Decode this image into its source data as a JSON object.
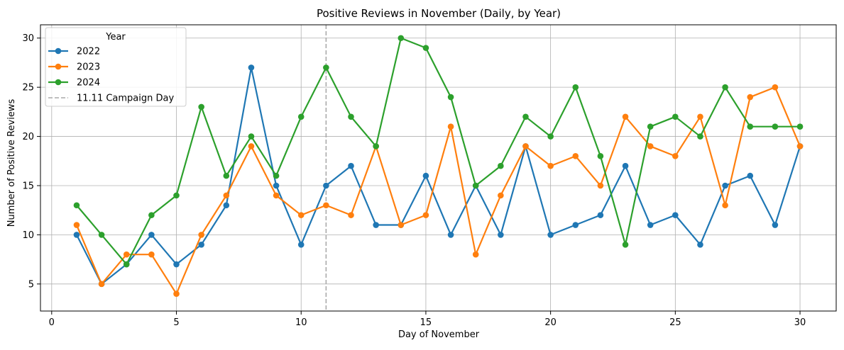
{
  "chart_data": {
    "type": "line",
    "title": "Positive Reviews in November (Daily, by Year)",
    "xlabel": "Day of November",
    "ylabel": "Number of Positive Reviews",
    "xlim": [
      -0.45,
      31.45
    ],
    "ylim": [
      2.25,
      31.35
    ],
    "x_ticks": [
      0,
      5,
      10,
      15,
      20,
      25,
      30
    ],
    "y_ticks": [
      5,
      10,
      15,
      20,
      25,
      30
    ],
    "grid": true,
    "legend": {
      "title": "Year",
      "placement": "upper-left"
    },
    "x": [
      1,
      2,
      3,
      4,
      5,
      6,
      7,
      8,
      9,
      10,
      11,
      12,
      13,
      14,
      15,
      16,
      17,
      18,
      19,
      20,
      21,
      22,
      23,
      24,
      25,
      26,
      27,
      28,
      29,
      30
    ],
    "series": [
      {
        "name": "2022",
        "color": "#1f77b4",
        "values": [
          10,
          5,
          7,
          10,
          7,
          9,
          13,
          27,
          15,
          9,
          15,
          17,
          11,
          11,
          16,
          10,
          15,
          10,
          19,
          10,
          11,
          12,
          17,
          11,
          12,
          9,
          15,
          16,
          11,
          19
        ]
      },
      {
        "name": "2023",
        "color": "#ff7f0e",
        "values": [
          11,
          5,
          8,
          8,
          4,
          10,
          14,
          19,
          14,
          12,
          13,
          12,
          19,
          11,
          12,
          21,
          8,
          14,
          19,
          17,
          18,
          15,
          22,
          19,
          18,
          22,
          13,
          24,
          25,
          19
        ]
      },
      {
        "name": "2024",
        "color": "#2ca02c",
        "values": [
          13,
          10,
          7,
          12,
          14,
          23,
          16,
          20,
          16,
          22,
          27,
          22,
          19,
          30,
          29,
          24,
          15,
          17,
          22,
          20,
          25,
          18,
          9,
          21,
          22,
          20,
          25,
          21,
          21,
          21
        ]
      }
    ],
    "reference_line": {
      "label": "11.11 Campaign Day",
      "x": 11,
      "color": "#aaaaaa",
      "style": "dashed"
    }
  }
}
